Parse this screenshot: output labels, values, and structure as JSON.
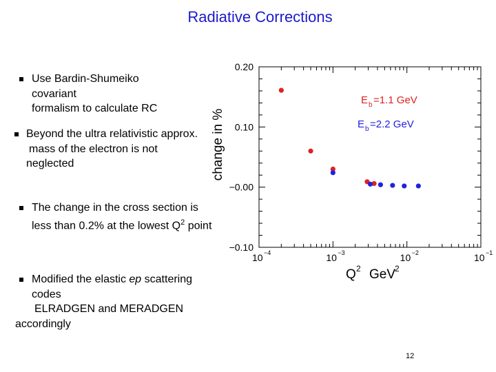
{
  "slide": {
    "title": "Radiative Corrections",
    "page_number": "12",
    "bullets": [
      {
        "lines": [
          "Use Bardin-Shumeiko",
          "covariant",
          "formalism to calculate RC"
        ]
      },
      {
        "lines": [
          "Beyond the ultra relativistic approx.",
          "mass of the electron is not",
          "neglected"
        ]
      },
      {
        "lines": [
          "The change in the cross section is",
          "less than 0.2% at the lowest Q",
          "point"
        ],
        "sup": "2"
      },
      {
        "lines": [
          "Modified the elastic ep scattering",
          "codes",
          "ELRADGEN and MERADGEN",
          "accordingly"
        ],
        "italic": "ep"
      }
    ]
  },
  "chart_data": {
    "type": "scatter",
    "xscale": "log",
    "xlim": [
      0.0001,
      0.1
    ],
    "ylim": [
      -0.1,
      0.2
    ],
    "xlabel": "Q",
    "xlabel_sup": "2",
    "xlabel_unit": "GeV",
    "xlabel_unit_sup": "2",
    "ylabel": "change in %",
    "yticks": [
      "0.20",
      "0.10",
      "−0.00",
      "−0.10"
    ],
    "ytick_values": [
      0.2,
      0.1,
      0.0,
      -0.1
    ],
    "xticks_base": "10",
    "xticks_exp": [
      "−4",
      "−3",
      "−2",
      "−1"
    ],
    "xtick_values": [
      0.0001,
      0.001,
      0.01,
      0.1
    ],
    "series": [
      {
        "name_main": "E",
        "name_sub": "b",
        "name_rest": "=1.1 GeV",
        "color": "#dd2222",
        "x": [
          0.0002,
          0.0005,
          0.001,
          0.0029,
          0.0036
        ],
        "y": [
          0.161,
          0.06,
          0.03,
          0.009,
          0.006
        ]
      },
      {
        "name_main": "E",
        "name_sub": "b",
        "name_rest": "=2.2 GeV",
        "color": "#2222dd",
        "x": [
          0.001,
          0.0032,
          0.0044,
          0.0064,
          0.0092,
          0.0143
        ],
        "y": [
          0.024,
          0.005,
          0.004,
          0.003,
          0.002,
          0.002
        ]
      }
    ]
  }
}
